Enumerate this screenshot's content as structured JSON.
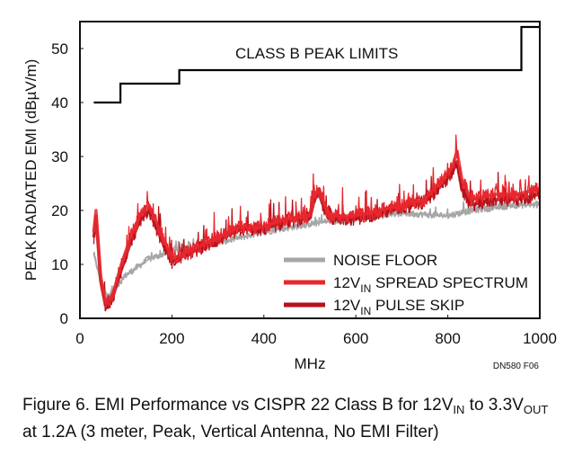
{
  "chart_data": {
    "type": "line",
    "title": "",
    "xlabel": "MHz",
    "ylabel": "PEAK RADIATED EMI (dBµV/m)",
    "xlim": [
      0,
      1000
    ],
    "ylim": [
      0,
      55
    ],
    "x_ticks": [
      0,
      200,
      400,
      600,
      800,
      1000
    ],
    "y_ticks": [
      0,
      10,
      20,
      30,
      40,
      50
    ],
    "annotation": "CLASS B PEAK LIMITS",
    "figure_code": "DN580 F06",
    "limit_line": {
      "name": "CLASS B PEAK LIMITS",
      "color": "#000000",
      "x": [
        30,
        88,
        88,
        216,
        216,
        960,
        960,
        1000
      ],
      "y": [
        40,
        40,
        43.5,
        43.5,
        46,
        46,
        54,
        54
      ]
    },
    "series": [
      {
        "name": "NOISE FLOOR",
        "label_main": "NOISE FLOOR",
        "label_sub": "",
        "label_tail": "",
        "color": "#a6a6a6",
        "x": [
          30,
          45,
          60,
          80,
          100,
          150,
          200,
          300,
          400,
          500,
          600,
          700,
          800,
          850,
          900,
          950,
          1000
        ],
        "y": [
          12,
          7,
          4,
          6,
          8,
          11,
          12.5,
          14,
          16,
          17.5,
          18.5,
          19.5,
          19,
          20,
          20.5,
          21,
          21
        ]
      },
      {
        "name": "12VIN SPREAD SPECTRUM",
        "label_main": "12V",
        "label_sub": "IN",
        "label_tail": " SPREAD SPECTRUM",
        "color": "#e8272e",
        "x": [
          30,
          35,
          45,
          55,
          70,
          90,
          110,
          130,
          150,
          180,
          200,
          250,
          300,
          350,
          400,
          450,
          500,
          510,
          520,
          540,
          600,
          650,
          700,
          750,
          800,
          810,
          820,
          830,
          850,
          900,
          950,
          1000
        ],
        "y": [
          16,
          20,
          8,
          3,
          4,
          10,
          15,
          19,
          21,
          15,
          11,
          13,
          15,
          17,
          17,
          18.5,
          19,
          23,
          24,
          19,
          19,
          20,
          21,
          22,
          27,
          28,
          31,
          26,
          22,
          23,
          23,
          24
        ]
      },
      {
        "name": "12VIN PULSE SKIP",
        "label_main": "12V",
        "label_sub": "IN",
        "label_tail": " PULSE SKIP",
        "color": "#b5121b",
        "x": [
          30,
          35,
          45,
          55,
          70,
          90,
          110,
          130,
          150,
          180,
          200,
          250,
          300,
          350,
          400,
          450,
          500,
          510,
          520,
          540,
          600,
          650,
          700,
          750,
          800,
          810,
          820,
          830,
          850,
          900,
          950,
          1000
        ],
        "y": [
          15,
          19,
          7,
          2.5,
          3.5,
          9,
          14,
          18,
          20,
          14,
          10.5,
          12.5,
          14.5,
          16.5,
          16.5,
          18,
          18.5,
          22,
          23,
          18.5,
          18.5,
          19.5,
          20.5,
          21.5,
          26,
          27,
          29,
          24,
          21,
          22,
          22,
          23
        ]
      }
    ]
  },
  "caption": {
    "l1a": "Figure 6. EMI Performance vs CISPR 22 Class B for 12V",
    "l1b": "IN",
    "l1c": " to 3.3V",
    "l1d": "OUT",
    "l2": "at 1.2A (3 meter, Peak, Vertical Antenna, No EMI Filter)"
  }
}
